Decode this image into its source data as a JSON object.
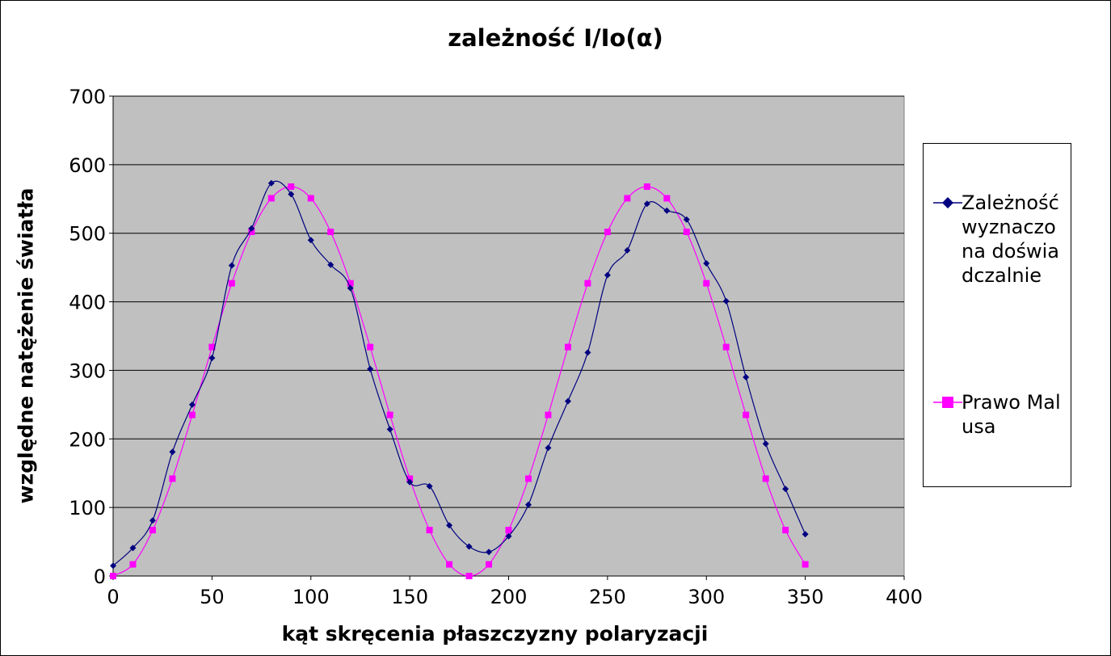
{
  "chart_data": {
    "type": "line",
    "title": "zależność  I/Io(α)",
    "xlabel": "kąt skręcenia płaszczyzny polaryzacji",
    "ylabel": "względne natężenie światła",
    "xlim": [
      0,
      400
    ],
    "ylim": [
      0,
      700
    ],
    "x_ticks": [
      "0",
      "50",
      "100",
      "150",
      "200",
      "250",
      "300",
      "350",
      "400"
    ],
    "y_ticks": [
      "0",
      "100",
      "200",
      "300",
      "400",
      "500",
      "600",
      "700"
    ],
    "grid": "horizontal",
    "plot_background": "#c0c0c0",
    "legend_position": "right",
    "series": [
      {
        "name": "Zależność wyznaczona doświadczalnie",
        "color": "#000080",
        "marker": "diamond",
        "x": [
          0,
          10,
          20,
          30,
          40,
          50,
          60,
          70,
          80,
          90,
          100,
          110,
          120,
          130,
          140,
          150,
          160,
          170,
          180,
          190,
          200,
          210,
          220,
          230,
          240,
          250,
          260,
          270,
          280,
          290,
          300,
          310,
          320,
          330,
          340,
          350
        ],
        "values": [
          15,
          41,
          81,
          181,
          250,
          318,
          453,
          507,
          573,
          557,
          490,
          454,
          420,
          302,
          214,
          137,
          131,
          74,
          43,
          35,
          58,
          104,
          187,
          255,
          326,
          439,
          475,
          543,
          533,
          520,
          456,
          401,
          290,
          193,
          127,
          61
        ]
      },
      {
        "name": "Prawo Malusa",
        "color": "#ff00ff",
        "marker": "square",
        "x": [
          0,
          10,
          20,
          30,
          40,
          50,
          60,
          70,
          80,
          90,
          100,
          110,
          120,
          130,
          140,
          150,
          160,
          170,
          180,
          190,
          200,
          210,
          220,
          230,
          240,
          250,
          260,
          270,
          280,
          290,
          300,
          310,
          320,
          330,
          340,
          350
        ],
        "values": [
          0,
          17,
          67,
          142,
          235,
          334,
          427,
          502,
          551,
          568,
          551,
          502,
          427,
          334,
          235,
          142,
          67,
          17,
          0,
          17,
          67,
          142,
          235,
          334,
          427,
          502,
          551,
          568,
          551,
          502,
          427,
          334,
          235,
          142,
          67,
          17
        ]
      }
    ]
  }
}
